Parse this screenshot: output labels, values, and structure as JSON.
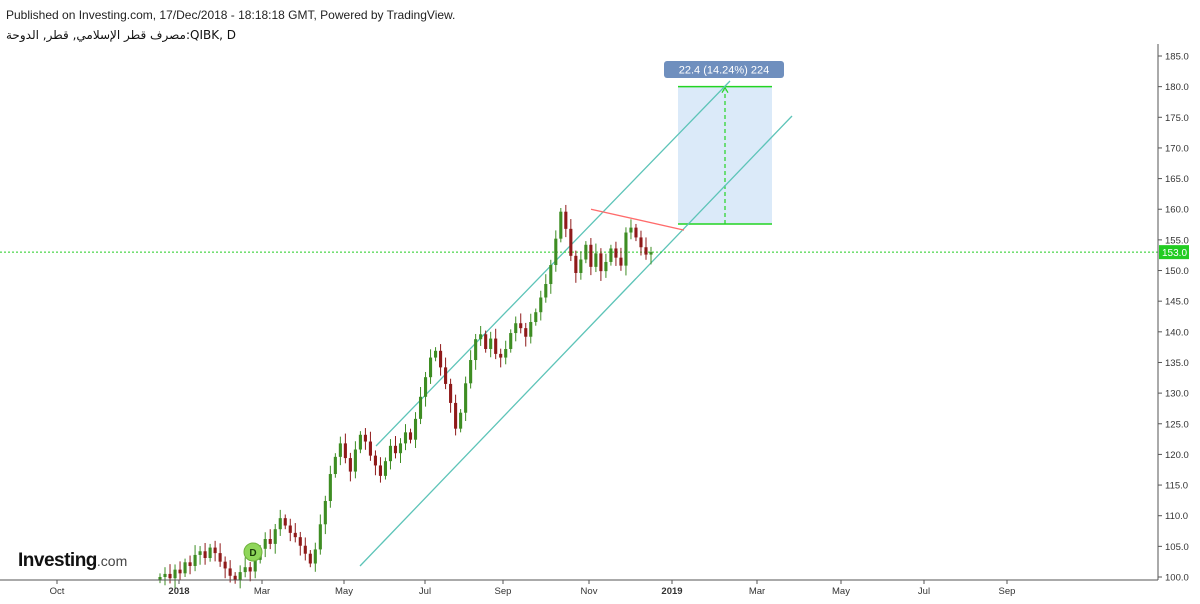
{
  "header": {
    "published": "Published on Investing.com, 17/Dec/2018 - 18:18:18 GMT, Powered by TradingView.",
    "symbol": "مصرف قطر الإسلامي, قطر, الدوحة:QIBK, D"
  },
  "logo": {
    "brand": "Investing",
    "suffix": ".com"
  },
  "colors": {
    "up": "#3e8d23",
    "down": "#8f1a1a",
    "channel": "#5dc4b8",
    "resistance": "#ff6b6b",
    "target_box": "#dbeaf9",
    "target_line": "#22d422",
    "price_line": "#22cc22",
    "badge": "#6f8fbe"
  },
  "chart_data": {
    "type": "candlestick",
    "title": "",
    "y_axis": {
      "min": 100,
      "max": 185,
      "ticks": [
        "100.0",
        "105.0",
        "110.0",
        "115.0",
        "120.0",
        "125.0",
        "130.0",
        "135.0",
        "140.0",
        "145.0",
        "150.0",
        "155.0",
        "160.0",
        "165.0",
        "170.0",
        "175.0",
        "180.0",
        "185.0"
      ]
    },
    "x_axis": {
      "ticks": [
        {
          "label": "Oct",
          "year": false
        },
        {
          "label": "2018",
          "year": true
        },
        {
          "label": "Mar",
          "year": false
        },
        {
          "label": "May",
          "year": false
        },
        {
          "label": "Jul",
          "year": false
        },
        {
          "label": "Sep",
          "year": false
        },
        {
          "label": "Nov",
          "year": false
        },
        {
          "label": "2019",
          "year": true
        },
        {
          "label": "Mar",
          "year": false
        },
        {
          "label": "May",
          "year": false
        },
        {
          "label": "Jul",
          "year": false
        },
        {
          "label": "Sep",
          "year": false
        }
      ]
    },
    "last_price": 153.0,
    "last_price_label": "153.0",
    "dividend_marker": "D",
    "measure_label": "22.4 (14.24%) 224",
    "target": {
      "from": 157.6,
      "to": 180.0
    },
    "closes": [
      100,
      100.5,
      99.8,
      101.2,
      100.6,
      102.4,
      101.8,
      103.6,
      104.2,
      103.1,
      104.8,
      103.9,
      102.5,
      101.4,
      100.2,
      99.5,
      100.8,
      101.6,
      100.9,
      102.8,
      104.6,
      106.2,
      105.4,
      107.8,
      109.6,
      108.4,
      107.2,
      106.5,
      105.1,
      103.8,
      102.2,
      104.5,
      108.6,
      112.4,
      116.8,
      119.6,
      121.8,
      119.4,
      117.2,
      120.8,
      123.2,
      122.1,
      119.8,
      118.2,
      116.5,
      118.9,
      121.4,
      120.2,
      121.8,
      123.6,
      122.4,
      125.8,
      129.4,
      132.6,
      135.8,
      136.9,
      134.2,
      131.5,
      128.4,
      124.2,
      126.8,
      131.6,
      135.4,
      138.8,
      139.6,
      137.2,
      138.9,
      136.4,
      135.8,
      137.2,
      139.8,
      141.4,
      140.6,
      139.2,
      141.6,
      143.2,
      145.6,
      147.8,
      150.9,
      155.2,
      159.6,
      156.8,
      152.4,
      149.6,
      151.8,
      154.2,
      150.6,
      152.8,
      149.9,
      151.4,
      153.6,
      152.1,
      150.8,
      156.2,
      157.0,
      155.4,
      153.8,
      152.6,
      153.0
    ]
  }
}
